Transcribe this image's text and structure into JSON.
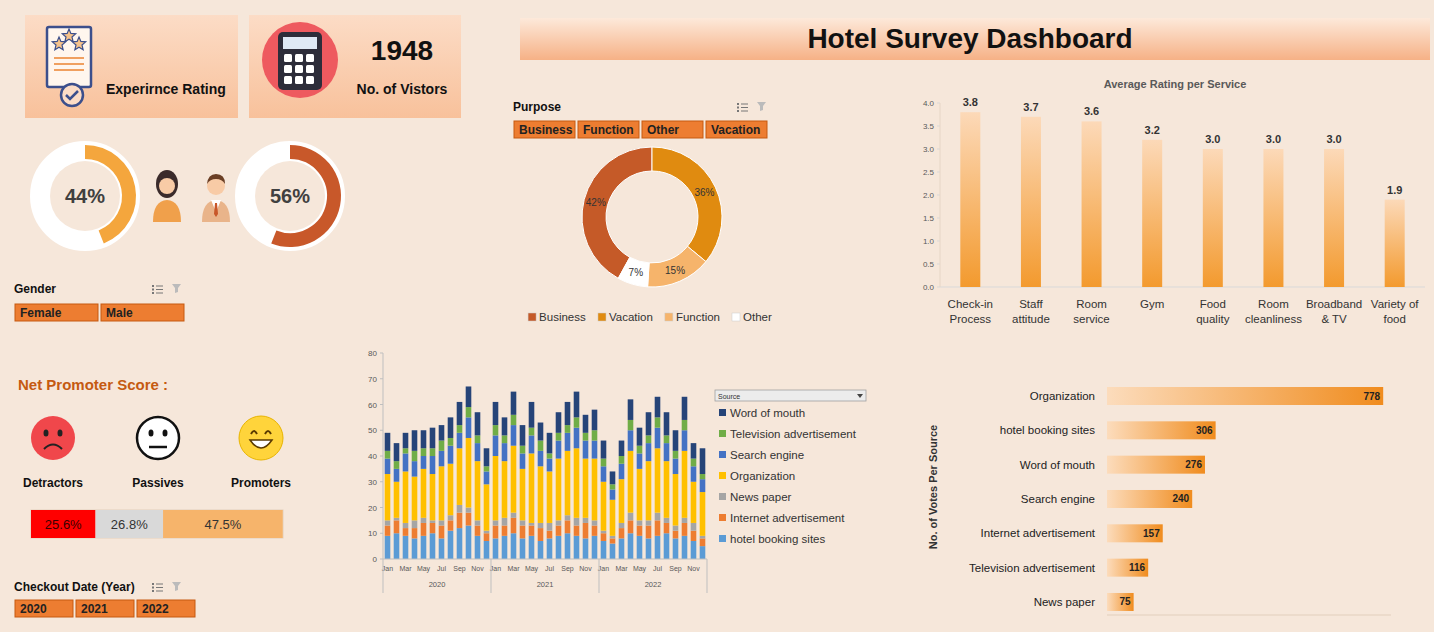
{
  "header": {
    "title": "Hotel Survey Dashboard"
  },
  "kpis": [
    {
      "label": "Experirnce Rating"
    },
    {
      "label": "No. of Vistors",
      "value": 1948
    }
  ],
  "slicers": [
    {
      "title": "Gender",
      "items": [
        "Female",
        "Male"
      ]
    },
    {
      "title": "Purpose",
      "items": [
        "Business",
        "Function",
        "Other",
        "Vacation"
      ]
    },
    {
      "title": "Checkout Date (Year)",
      "items": [
        "2020",
        "2021",
        "2022"
      ]
    }
  ],
  "chart_data": [
    {
      "type": "donut",
      "values": [
        44,
        56
      ],
      "value_labels": [
        "44%",
        "56%"
      ],
      "colors": [
        "#f4a63d",
        "#c8582a"
      ],
      "data_labels": true
    },
    {
      "type": "donut",
      "categories": [
        "Business",
        "Vacation",
        "Function",
        "Other"
      ],
      "values": [
        42,
        36,
        15,
        7
      ],
      "value_labels": [
        "42%",
        "36%",
        "15%",
        "7%"
      ],
      "colors": [
        "#c55a28",
        "#e08b10",
        "#f6b46b",
        "#ffffff"
      ],
      "legend": "bottom",
      "data_labels": true
    },
    {
      "type": "bar",
      "title": "Average Rating per Service",
      "categories": [
        "Check-in Process",
        "Staff attitude",
        "Room service",
        "Gym",
        "Food quality",
        "Room cleanliness",
        "Broadband & TV",
        "Variety of food"
      ],
      "values": [
        3.8,
        3.7,
        3.6,
        3.2,
        3.0,
        3.0,
        3.0,
        1.9
      ],
      "value_labels": [
        "3.8",
        "3.7",
        "3.6",
        "3.2",
        "3.0",
        "3.0",
        "3.0",
        "1.9"
      ],
      "color": "#f39a2e",
      "ylim": [
        0,
        4
      ],
      "yticks": [
        {
          "value": 0,
          "label": "0.0"
        },
        {
          "value": 0.5,
          "label": "0.5"
        },
        {
          "value": 1,
          "label": "1.0"
        },
        {
          "value": 1.5,
          "label": "1.5"
        },
        {
          "value": 2,
          "label": "2.0"
        },
        {
          "value": 2.5,
          "label": "2.5"
        },
        {
          "value": 3,
          "label": "3.0"
        },
        {
          "value": 3.5,
          "label": "3.5"
        },
        {
          "value": 4,
          "label": "4.0"
        }
      ],
      "grid": false,
      "data_labels": true
    },
    {
      "type": "bar",
      "title": "Net Promoter Score :",
      "orientation": "horizontal",
      "stacked": true,
      "categories": [
        "Detractors",
        "Passives",
        "Promoters"
      ],
      "values": [
        25.6,
        26.8,
        47.5
      ],
      "value_labels": [
        "25.6%",
        "26.8%",
        "47.5%"
      ],
      "colors": [
        "#ff0000",
        "#d9d9d9",
        "#f6b46b"
      ],
      "xlim": [
        0,
        100
      ],
      "tick_labels": false,
      "data_labels": true
    },
    {
      "type": "bar",
      "stacked": true,
      "categories": [
        "Jan",
        null,
        "Mar",
        null,
        "May",
        null,
        "Jul",
        null,
        "Sep",
        null,
        "Nov",
        null,
        "Jan",
        null,
        "Mar",
        null,
        "May",
        null,
        "Jul",
        null,
        "Sep",
        null,
        "Nov",
        null,
        "Jan",
        null,
        "Mar",
        null,
        "May",
        null,
        "Jul",
        null,
        "Sep",
        null,
        "Nov",
        null
      ],
      "x_groups": [
        "2020",
        "2021",
        "2022"
      ],
      "series": [
        {
          "name": "Word of mouth",
          "color": "#264478",
          "values": [
            7,
            7,
            6,
            8,
            7,
            8,
            6,
            8,
            9,
            8,
            9,
            7,
            9,
            7,
            9,
            8,
            10,
            7,
            8,
            8,
            9,
            10,
            7,
            8,
            7,
            5,
            6,
            8,
            7,
            9,
            8,
            9,
            8,
            9,
            6,
            10
          ]
        },
        {
          "name": "Television advertisement",
          "color": "#70ad47",
          "values": [
            3,
            3,
            2,
            4,
            3,
            3,
            4,
            3,
            3,
            4,
            3,
            2,
            4,
            3,
            4,
            3,
            3,
            4,
            2,
            3,
            3,
            4,
            3,
            4,
            3,
            2,
            3,
            4,
            3,
            3,
            4,
            3,
            3,
            4,
            3,
            2
          ]
        },
        {
          "name": "Search engine",
          "color": "#4472c4",
          "values": [
            6,
            5,
            7,
            6,
            5,
            7,
            6,
            7,
            6,
            8,
            7,
            5,
            8,
            7,
            8,
            6,
            7,
            6,
            5,
            7,
            7,
            8,
            7,
            7,
            6,
            4,
            6,
            8,
            6,
            7,
            8,
            7,
            6,
            8,
            6,
            5
          ]
        },
        {
          "name": "Organization",
          "color": "#ffc000",
          "values": [
            18,
            14,
            20,
            17,
            19,
            18,
            21,
            20,
            22,
            27,
            23,
            18,
            25,
            22,
            26,
            20,
            27,
            22,
            20,
            24,
            25,
            27,
            23,
            24,
            19,
            14,
            17,
            24,
            20,
            23,
            25,
            22,
            20,
            26,
            16,
            17
          ]
        },
        {
          "name": "News paper",
          "color": "#a5a5a5",
          "values": [
            2,
            1,
            2,
            3,
            2,
            1,
            2,
            2,
            3,
            2,
            2,
            1,
            2,
            3,
            2,
            2,
            1,
            2,
            3,
            2,
            2,
            3,
            2,
            2,
            1,
            1,
            2,
            3,
            2,
            2,
            3,
            2,
            2,
            2,
            3,
            1
          ]
        },
        {
          "name": "Internet advertisement",
          "color": "#ed7d31",
          "values": [
            4,
            5,
            3,
            4,
            5,
            4,
            5,
            4,
            6,
            5,
            4,
            3,
            5,
            4,
            6,
            5,
            4,
            5,
            3,
            4,
            5,
            4,
            6,
            4,
            3,
            2,
            4,
            5,
            4,
            5,
            6,
            4,
            3,
            5,
            4,
            3
          ]
        },
        {
          "name": "hotel booking sites",
          "color": "#5b9bd5",
          "values": [
            9,
            10,
            9,
            8,
            9,
            10,
            8,
            11,
            12,
            13,
            9,
            7,
            8,
            9,
            10,
            8,
            9,
            7,
            8,
            9,
            10,
            9,
            8,
            9,
            7,
            6,
            8,
            10,
            9,
            8,
            9,
            10,
            8,
            9,
            7,
            5
          ]
        }
      ],
      "ylim": [
        0,
        80
      ],
      "yticks": [
        0,
        10,
        20,
        30,
        40,
        50,
        60,
        70,
        80
      ],
      "grid": false,
      "legend": "right",
      "legend_title": "Source"
    },
    {
      "type": "bar",
      "orientation": "horizontal",
      "y_label": "No. of Votes Per Source",
      "categories": [
        "Organization",
        "hotel booking sites",
        "Word of mouth",
        "Search engine",
        "Internet advertisement",
        "Television advertisement",
        "News paper"
      ],
      "values": [
        778,
        306,
        276,
        240,
        157,
        116,
        75
      ],
      "color": "#f08c1e",
      "xlim": [
        0,
        800
      ],
      "tick_labels": "y",
      "data_labels": true
    }
  ]
}
